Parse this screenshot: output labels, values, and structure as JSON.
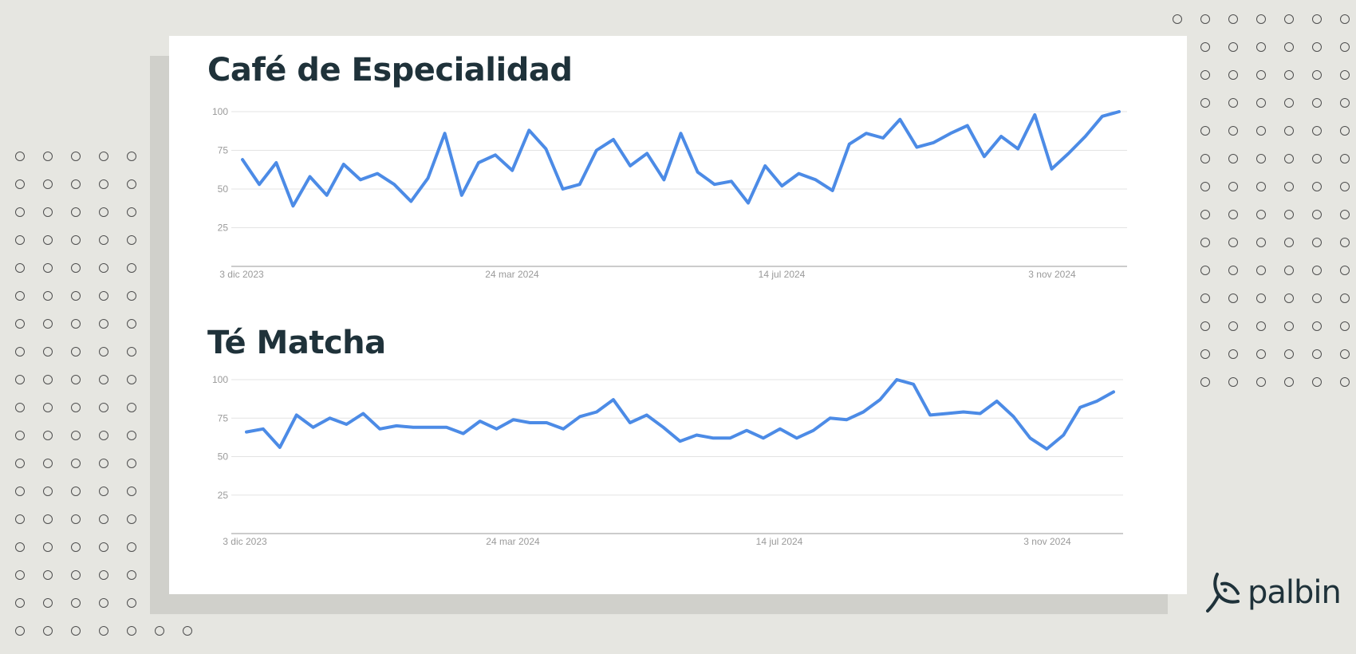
{
  "brand": {
    "name": "palbin",
    "logo_icon": "fish-icon"
  },
  "colors": {
    "background": "#e6e6e1",
    "card": "#ffffff",
    "line": "#4c8be6",
    "title": "#1f323a",
    "grid": "#e3e3e3",
    "tick": "#9a9a9a"
  },
  "chart_data": [
    {
      "type": "line",
      "title": "Café de Especialidad",
      "xlabel": "",
      "ylabel": "",
      "ylim": [
        0,
        100
      ],
      "yticks": [
        "25",
        "50",
        "75",
        "100"
      ],
      "xticks": [
        "3 dic 2023",
        "24 mar 2024",
        "14 jul 2024",
        "3 nov 2024"
      ],
      "grid": true,
      "values": [
        69,
        53,
        67,
        39,
        58,
        46,
        66,
        56,
        60,
        53,
        42,
        57,
        86,
        46,
        67,
        72,
        62,
        88,
        76,
        50,
        53,
        75,
        82,
        65,
        73,
        56,
        86,
        61,
        53,
        55,
        41,
        65,
        52,
        60,
        56,
        49,
        79,
        86,
        83,
        95,
        77,
        80,
        86,
        91,
        71,
        84,
        76,
        98,
        63,
        73,
        84,
        97,
        100
      ]
    },
    {
      "type": "line",
      "title": "Té Matcha",
      "xlabel": "",
      "ylabel": "",
      "ylim": [
        0,
        100
      ],
      "yticks": [
        "25",
        "50",
        "75",
        "100"
      ],
      "xticks": [
        "3 dic 2023",
        "24 mar 2024",
        "14 jul 2024",
        "3 nov 2024"
      ],
      "grid": true,
      "values": [
        66,
        68,
        56,
        77,
        69,
        75,
        71,
        78,
        68,
        70,
        69,
        69,
        69,
        65,
        73,
        68,
        74,
        72,
        72,
        68,
        76,
        79,
        87,
        72,
        77,
        69,
        60,
        64,
        62,
        62,
        67,
        62,
        68,
        62,
        67,
        75,
        74,
        79,
        87,
        100,
        97,
        77,
        78,
        79,
        78,
        86,
        76,
        62,
        55,
        64,
        82,
        86,
        92
      ]
    }
  ]
}
